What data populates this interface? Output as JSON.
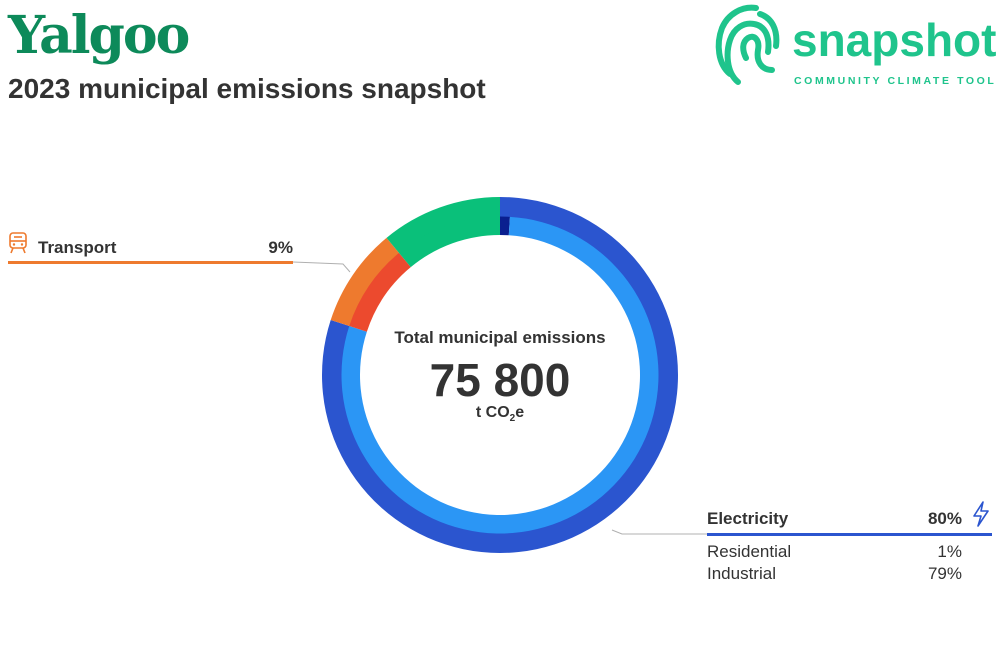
{
  "header": {
    "region": "Yalgoo",
    "subtitle": "2023 municipal emissions snapshot"
  },
  "logo": {
    "word": "snapshot",
    "tagline": "COMMUNITY CLIMATE TOOL",
    "color": "#1fc48c"
  },
  "center": {
    "label": "Total municipal emissions",
    "value": "75 800",
    "unit_prefix": "t CO",
    "unit_sub": "2",
    "unit_suffix": "e"
  },
  "chart_data": {
    "type": "pie",
    "variant": "nested-donut",
    "total": 75800,
    "sectors": [
      {
        "name": "Electricity",
        "percent": 80,
        "color": "#2b55cf",
        "icon": "lightning-icon",
        "subsectors": [
          {
            "name": "Residential",
            "percent": 1,
            "color": "#0a1f8f"
          },
          {
            "name": "Industrial",
            "percent": 79,
            "color": "#2b96f5"
          }
        ]
      },
      {
        "name": "Transport",
        "percent": 9,
        "color": "#ee7a2e",
        "icon": "train-icon",
        "subsectors": [
          {
            "percent": 9,
            "color": "#ec4a2e"
          }
        ]
      },
      {
        "percent": 11,
        "color": "#0ac07a",
        "subsectors": [
          {
            "percent": 11,
            "color": "#0ac07a"
          }
        ]
      }
    ]
  }
}
